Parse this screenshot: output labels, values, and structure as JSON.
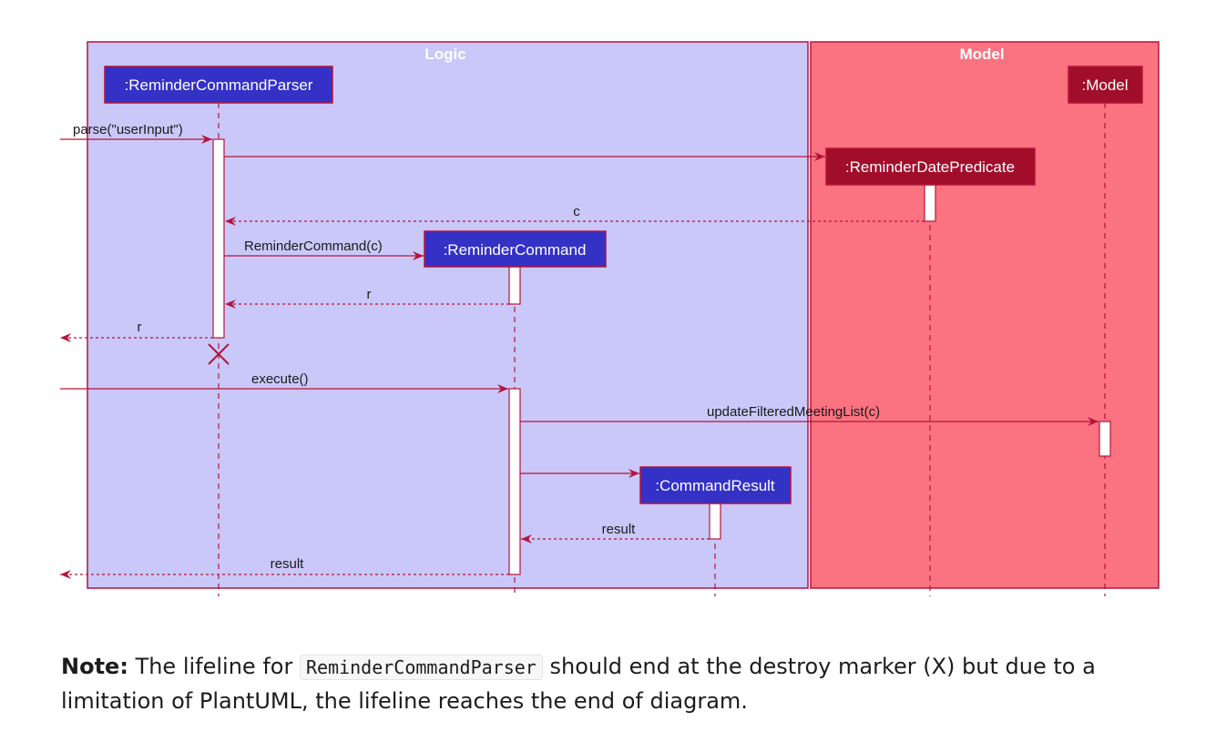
{
  "diagram": {
    "boxes": {
      "logic": "Logic",
      "model": "Model"
    },
    "participants": {
      "parser": ":ReminderCommandParser",
      "predicate": ":ReminderDatePredicate",
      "command": ":ReminderCommand",
      "result": ":CommandResult",
      "model": ":Model"
    },
    "messages": {
      "parse": "parse(\"userInput\")",
      "return_c": "c",
      "create_command": "ReminderCommand(c)",
      "return_r_command": "r",
      "return_r_parser": "r",
      "execute": "execute()",
      "update": "updateFilteredMeetingList(c)",
      "return_result_cr": "result",
      "return_result_out": "result"
    },
    "colors": {
      "logic_bg": "#c9c8f9",
      "model_bg": "#fb7280",
      "border": "#b5143a",
      "logic_participant": "#3431c6",
      "model_participant": "#a10e2a"
    }
  },
  "note": {
    "label": "Note:",
    "text_before": "The lifeline for",
    "code": "ReminderCommandParser",
    "text_after": "should end at the destroy marker (X) but due to a limitation of PlantUML, the lifeline reaches the end of diagram."
  }
}
